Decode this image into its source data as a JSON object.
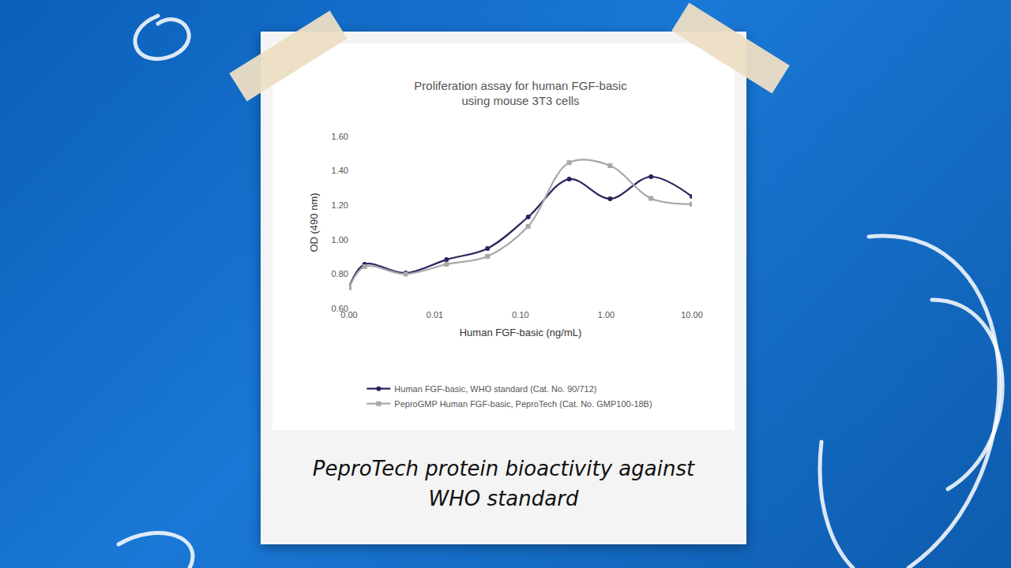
{
  "chart_data": {
    "type": "line",
    "title": "Proliferation assay for human FGF-basic using mouse 3T3 cells",
    "x_label": "Human FGF-basic (ng/mL)",
    "y_label": "OD (490 nm)",
    "x": [
      0.001,
      0.00152,
      0.00457,
      0.0137,
      0.0412,
      0.123,
      0.37,
      1.11,
      3.33,
      10
    ],
    "series": [
      {
        "name": "Human FGF-basic, WHO standard (Cat. No. 90/712)",
        "color": "#27255c",
        "marker": "circle",
        "values": [
          0.724,
          0.857,
          0.806,
          0.884,
          0.949,
          1.132,
          1.352,
          1.238,
          1.366,
          1.251
        ]
      },
      {
        "name": "PeproGMP Human FGF-basic, PeproTech (Cat. No. GMP100-18B)",
        "color": "#a8a8a8",
        "marker": "square",
        "values": [
          0.72,
          0.843,
          0.8,
          0.857,
          0.903,
          1.078,
          1.448,
          1.43,
          1.24,
          1.206
        ]
      }
    ],
    "xlim": [
      0.001,
      10
    ],
    "xticks": [
      {
        "value": 0.001,
        "label": "0.00"
      },
      {
        "value": 0.01,
        "label": "0.01"
      },
      {
        "value": 0.1,
        "label": "0.10"
      },
      {
        "value": 1,
        "label": "1.00"
      },
      {
        "value": 10,
        "label": "10.00"
      }
    ],
    "ylim": [
      0.6,
      1.6
    ],
    "yticks": [
      {
        "value": 0.6,
        "label": "0.60"
      },
      {
        "value": 0.8,
        "label": "0.80"
      },
      {
        "value": 1,
        "label": "1.00"
      },
      {
        "value": 1.2,
        "label": "1.20"
      },
      {
        "value": 1.4,
        "label": "1.40"
      },
      {
        "value": 1.6,
        "label": "1.60"
      }
    ],
    "log": "x",
    "grid": false,
    "legend": "bottom",
    "line_style": "spline",
    "annotations": [
      "PeproTech protein bioactivity against WHO standard"
    ]
  }
}
